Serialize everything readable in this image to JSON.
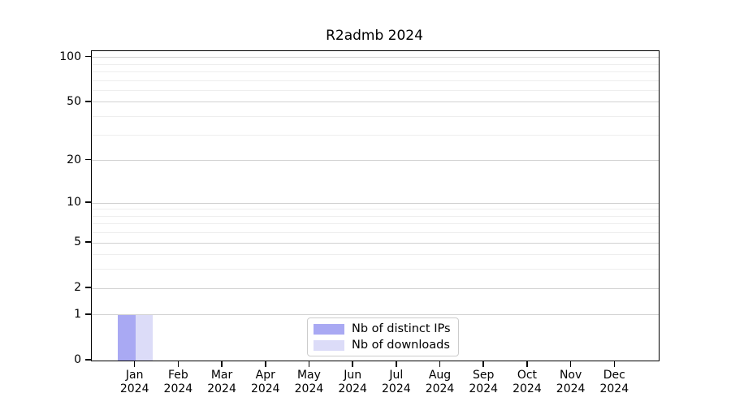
{
  "chart_data": {
    "type": "bar",
    "title": "R2admb 2024",
    "months": [
      "Jan",
      "Feb",
      "Mar",
      "Apr",
      "May",
      "Jun",
      "Jul",
      "Aug",
      "Sep",
      "Oct",
      "Nov",
      "Dec"
    ],
    "year": "2024",
    "categories": [
      "Jan 2024",
      "Feb 2024",
      "Mar 2024",
      "Apr 2024",
      "May 2024",
      "Jun 2024",
      "Jul 2024",
      "Aug 2024",
      "Sep 2024",
      "Oct 2024",
      "Nov 2024",
      "Dec 2024"
    ],
    "series": [
      {
        "name": "Nb of distinct IPs",
        "color": "#a9a9f3",
        "values": [
          1,
          0,
          0,
          0,
          0,
          0,
          0,
          0,
          0,
          0,
          0,
          0
        ]
      },
      {
        "name": "Nb of downloads",
        "color": "#dcdcf8",
        "values": [
          1,
          0,
          0,
          0,
          0,
          0,
          0,
          0,
          0,
          0,
          0,
          0
        ]
      }
    ],
    "y_axis": {
      "scale": "log10(value+1)",
      "ticks": [
        0,
        1,
        2,
        5,
        10,
        20,
        50,
        100
      ],
      "minor_gridlines": [
        3,
        4,
        6,
        7,
        8,
        9,
        30,
        40,
        60,
        70,
        80,
        90
      ],
      "max": 110
    },
    "xlabel": "",
    "ylabel": "",
    "grid": true,
    "legend_position": "lower center"
  },
  "colors": {
    "major_grid": "#d2d2d2",
    "minor_grid": "#eeeeee",
    "spine": "#000000",
    "background": "#ffffff"
  }
}
